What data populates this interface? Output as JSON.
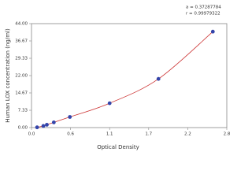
{
  "chart_data": {
    "type": "scatter",
    "x_label": "Optical Density",
    "y_label": "Human LOX concentration (ng/ml)",
    "annotations": [
      "a = 0.37287784",
      "r = 0.99979322"
    ],
    "series": [
      {
        "name": "Standard",
        "color": "#3344aa",
        "line_color": "#cc3333",
        "x": [
          0.08,
          0.17,
          0.22,
          0.32,
          0.55,
          1.12,
          1.82,
          2.6
        ],
        "values": [
          0.1,
          0.7,
          1.2,
          2.2,
          4.5,
          10.3,
          20.6,
          40.6
        ]
      }
    ],
    "xlim": [
      0,
      2.8
    ],
    "xticks": [
      {
        "value": 0,
        "label": "0.0"
      },
      {
        "value": 0.56,
        "label": "0.6"
      },
      {
        "value": 1.12,
        "label": "1.1"
      },
      {
        "value": 1.68,
        "label": "1.7"
      },
      {
        "value": 2.24,
        "label": "2.2"
      },
      {
        "value": 2.8,
        "label": "2.8"
      }
    ],
    "ylim": [
      0,
      44
    ],
    "yticks": [
      {
        "value": 0,
        "label": "0.00"
      },
      7.33,
      14.67,
      {
        "value": 22,
        "label": "22.00"
      },
      29.33,
      36.67,
      {
        "value": 44,
        "label": "44.00"
      }
    ]
  }
}
